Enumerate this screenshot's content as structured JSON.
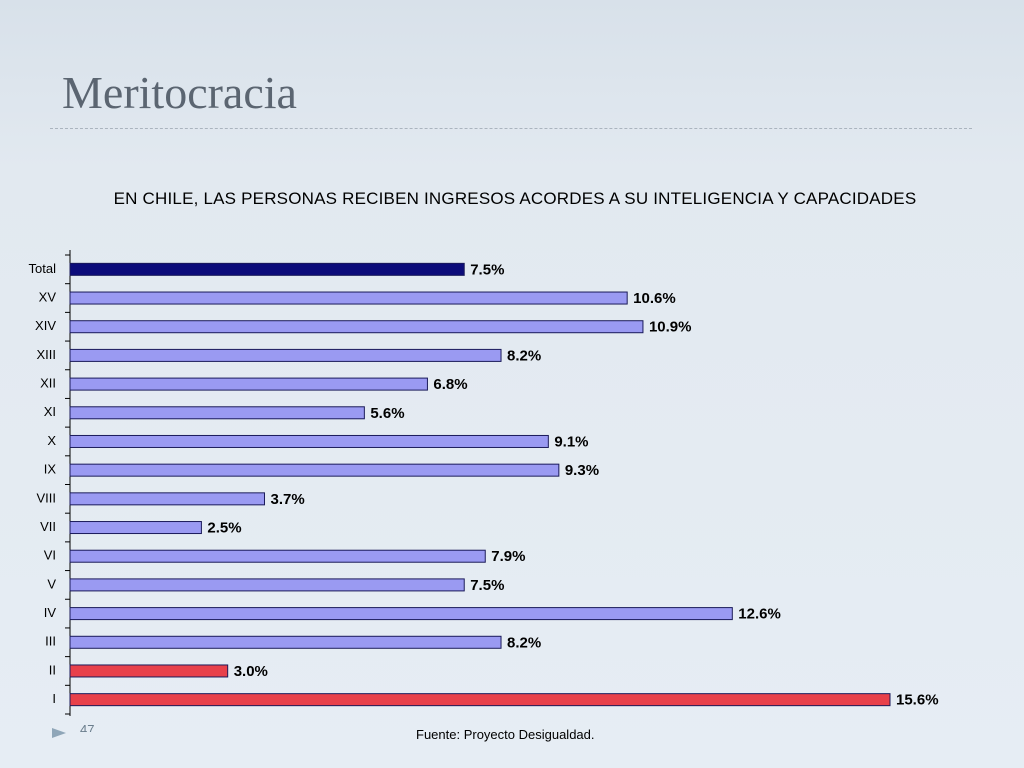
{
  "title": "Meritocracia",
  "slide_number": "47",
  "source": "Fuente: Proyecto Desigualdad.",
  "chart_data": {
    "type": "bar",
    "orientation": "horizontal",
    "title": "EN CHILE, LAS PERSONAS RECIBEN INGRESOS ACORDES A SU INTELIGENCIA Y CAPACIDADES",
    "categories": [
      "Total",
      "XV",
      "XIV",
      "XIII",
      "XII",
      "XI",
      "X",
      "IX",
      "VIII",
      "VII",
      "VI",
      "V",
      "IV",
      "III",
      "II",
      "I"
    ],
    "values": [
      7.5,
      10.6,
      10.9,
      8.2,
      6.8,
      5.6,
      9.1,
      9.3,
      3.7,
      2.5,
      7.9,
      7.5,
      12.6,
      8.2,
      3.0,
      15.6
    ],
    "value_labels": [
      "7.5%",
      "10.6%",
      "10.9%",
      "8.2%",
      "6.8%",
      "5.6%",
      "9.1%",
      "9.3%",
      "3.7%",
      "2.5%",
      "7.9%",
      "7.5%",
      "12.6%",
      "8.2%",
      "3.0%",
      "15.6%"
    ],
    "colors": [
      "#0c0c7a",
      "#9a9af2",
      "#9a9af2",
      "#9a9af2",
      "#9a9af2",
      "#9a9af2",
      "#9a9af2",
      "#9a9af2",
      "#9a9af2",
      "#9a9af2",
      "#9a9af2",
      "#9a9af2",
      "#9a9af2",
      "#9a9af2",
      "#e8404a",
      "#e8404a"
    ]
  }
}
